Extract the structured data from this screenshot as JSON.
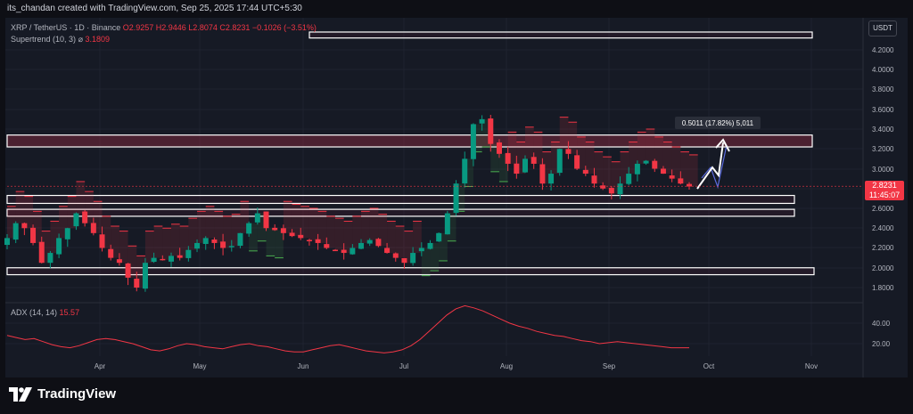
{
  "header": {
    "text": "its_chandan created with TradingView.com, Sep 25, 2025 17:44 UTC+5:30"
  },
  "legend": {
    "symbol": "XRP / TetherUS · 1D · Binance",
    "ohlc": "O2.9257 H2.9446 L2.8074 C2.8231 −0.1026 (−3.51%)",
    "supertrend_label": "Supertrend (10, 3)",
    "supertrend_value": "3.1809",
    "adx_label": "ADX (14, 14)",
    "adx_value": "15.57"
  },
  "currency_button": "USDT",
  "current_price": {
    "value": "2.8231",
    "countdown": "11:45:07",
    "color": "#f23645"
  },
  "measure_label": "0.5011 (17.82%) 5,011",
  "logo": {
    "text": "TradingView",
    "icon": "tradingview-logo-icon"
  },
  "colors": {
    "up": "#089981",
    "down": "#f23645",
    "supertrend_up": "#4caf50",
    "supertrend_down": "#f23645",
    "zone_border": "#ffffff",
    "adx_line": "#f23645"
  },
  "chart_data": [
    {
      "type": "line",
      "panel": "price",
      "ylim": [
        1.6,
        4.45
      ],
      "ytick_labels": [
        "4.2000",
        "4.0000",
        "3.8000",
        "3.6000",
        "3.4000",
        "3.2000",
        "3.0000",
        "2.8000",
        "2.6000",
        "2.4000",
        "2.2000",
        "2.0000",
        "1.8000"
      ],
      "xtick_labels": [
        "Apr",
        "May",
        "Jun",
        "Jul",
        "Aug",
        "Sep",
        "Oct",
        "Nov"
      ],
      "series": [
        {
          "values": [
            2.3,
            2.45,
            2.4,
            2.25,
            2.05,
            2.15,
            2.3,
            2.4,
            2.55,
            2.45,
            2.35,
            2.2,
            2.1,
            2.05,
            1.9,
            1.8,
            2.05,
            2.1,
            2.08,
            2.12,
            2.1,
            2.18,
            2.25,
            2.3,
            2.25,
            2.2,
            2.22,
            2.35,
            2.45,
            2.55,
            2.4,
            2.38,
            2.35,
            2.32,
            2.3,
            2.28,
            2.25,
            2.2,
            2.18,
            2.15,
            2.2,
            2.25,
            2.28,
            2.22,
            2.15,
            2.1,
            2.05,
            2.15,
            2.2,
            2.25,
            2.35,
            2.55,
            2.85,
            3.1,
            3.45,
            3.5,
            3.25,
            3.15,
            3.05,
            2.95,
            3.1,
            3.05,
            2.85,
            2.95,
            3.2,
            3.15,
            3.0,
            2.95,
            2.85,
            2.8,
            2.75,
            2.85,
            2.95,
            3.05,
            3.08,
            3.0,
            2.95,
            2.9,
            2.85,
            2.82
          ]
        }
      ],
      "zones": [
        [
          4.32,
          4.38
        ],
        [
          3.22,
          3.34
        ],
        [
          2.65,
          2.73
        ],
        [
          2.52,
          2.59
        ],
        [
          1.93,
          2.0
        ]
      ]
    },
    {
      "type": "line",
      "panel": "adx",
      "ytick_labels": [
        "40.00",
        "20.00"
      ],
      "series": [
        {
          "values": [
            28,
            26,
            24,
            25,
            22,
            19,
            17,
            16,
            18,
            21,
            24,
            25,
            24,
            22,
            20,
            17,
            14,
            13,
            15,
            18,
            20,
            19,
            17,
            16,
            15,
            17,
            19,
            20,
            18,
            17,
            15,
            13,
            12,
            12,
            14,
            16,
            18,
            19,
            17,
            15,
            13,
            12,
            11,
            12,
            14,
            18,
            24,
            32,
            40,
            48,
            54,
            57,
            55,
            52,
            48,
            44,
            40,
            37,
            35,
            32,
            30,
            28,
            27,
            25,
            23,
            22,
            20,
            21,
            22,
            21,
            20,
            19,
            18,
            17,
            16,
            16,
            16
          ]
        }
      ]
    }
  ]
}
